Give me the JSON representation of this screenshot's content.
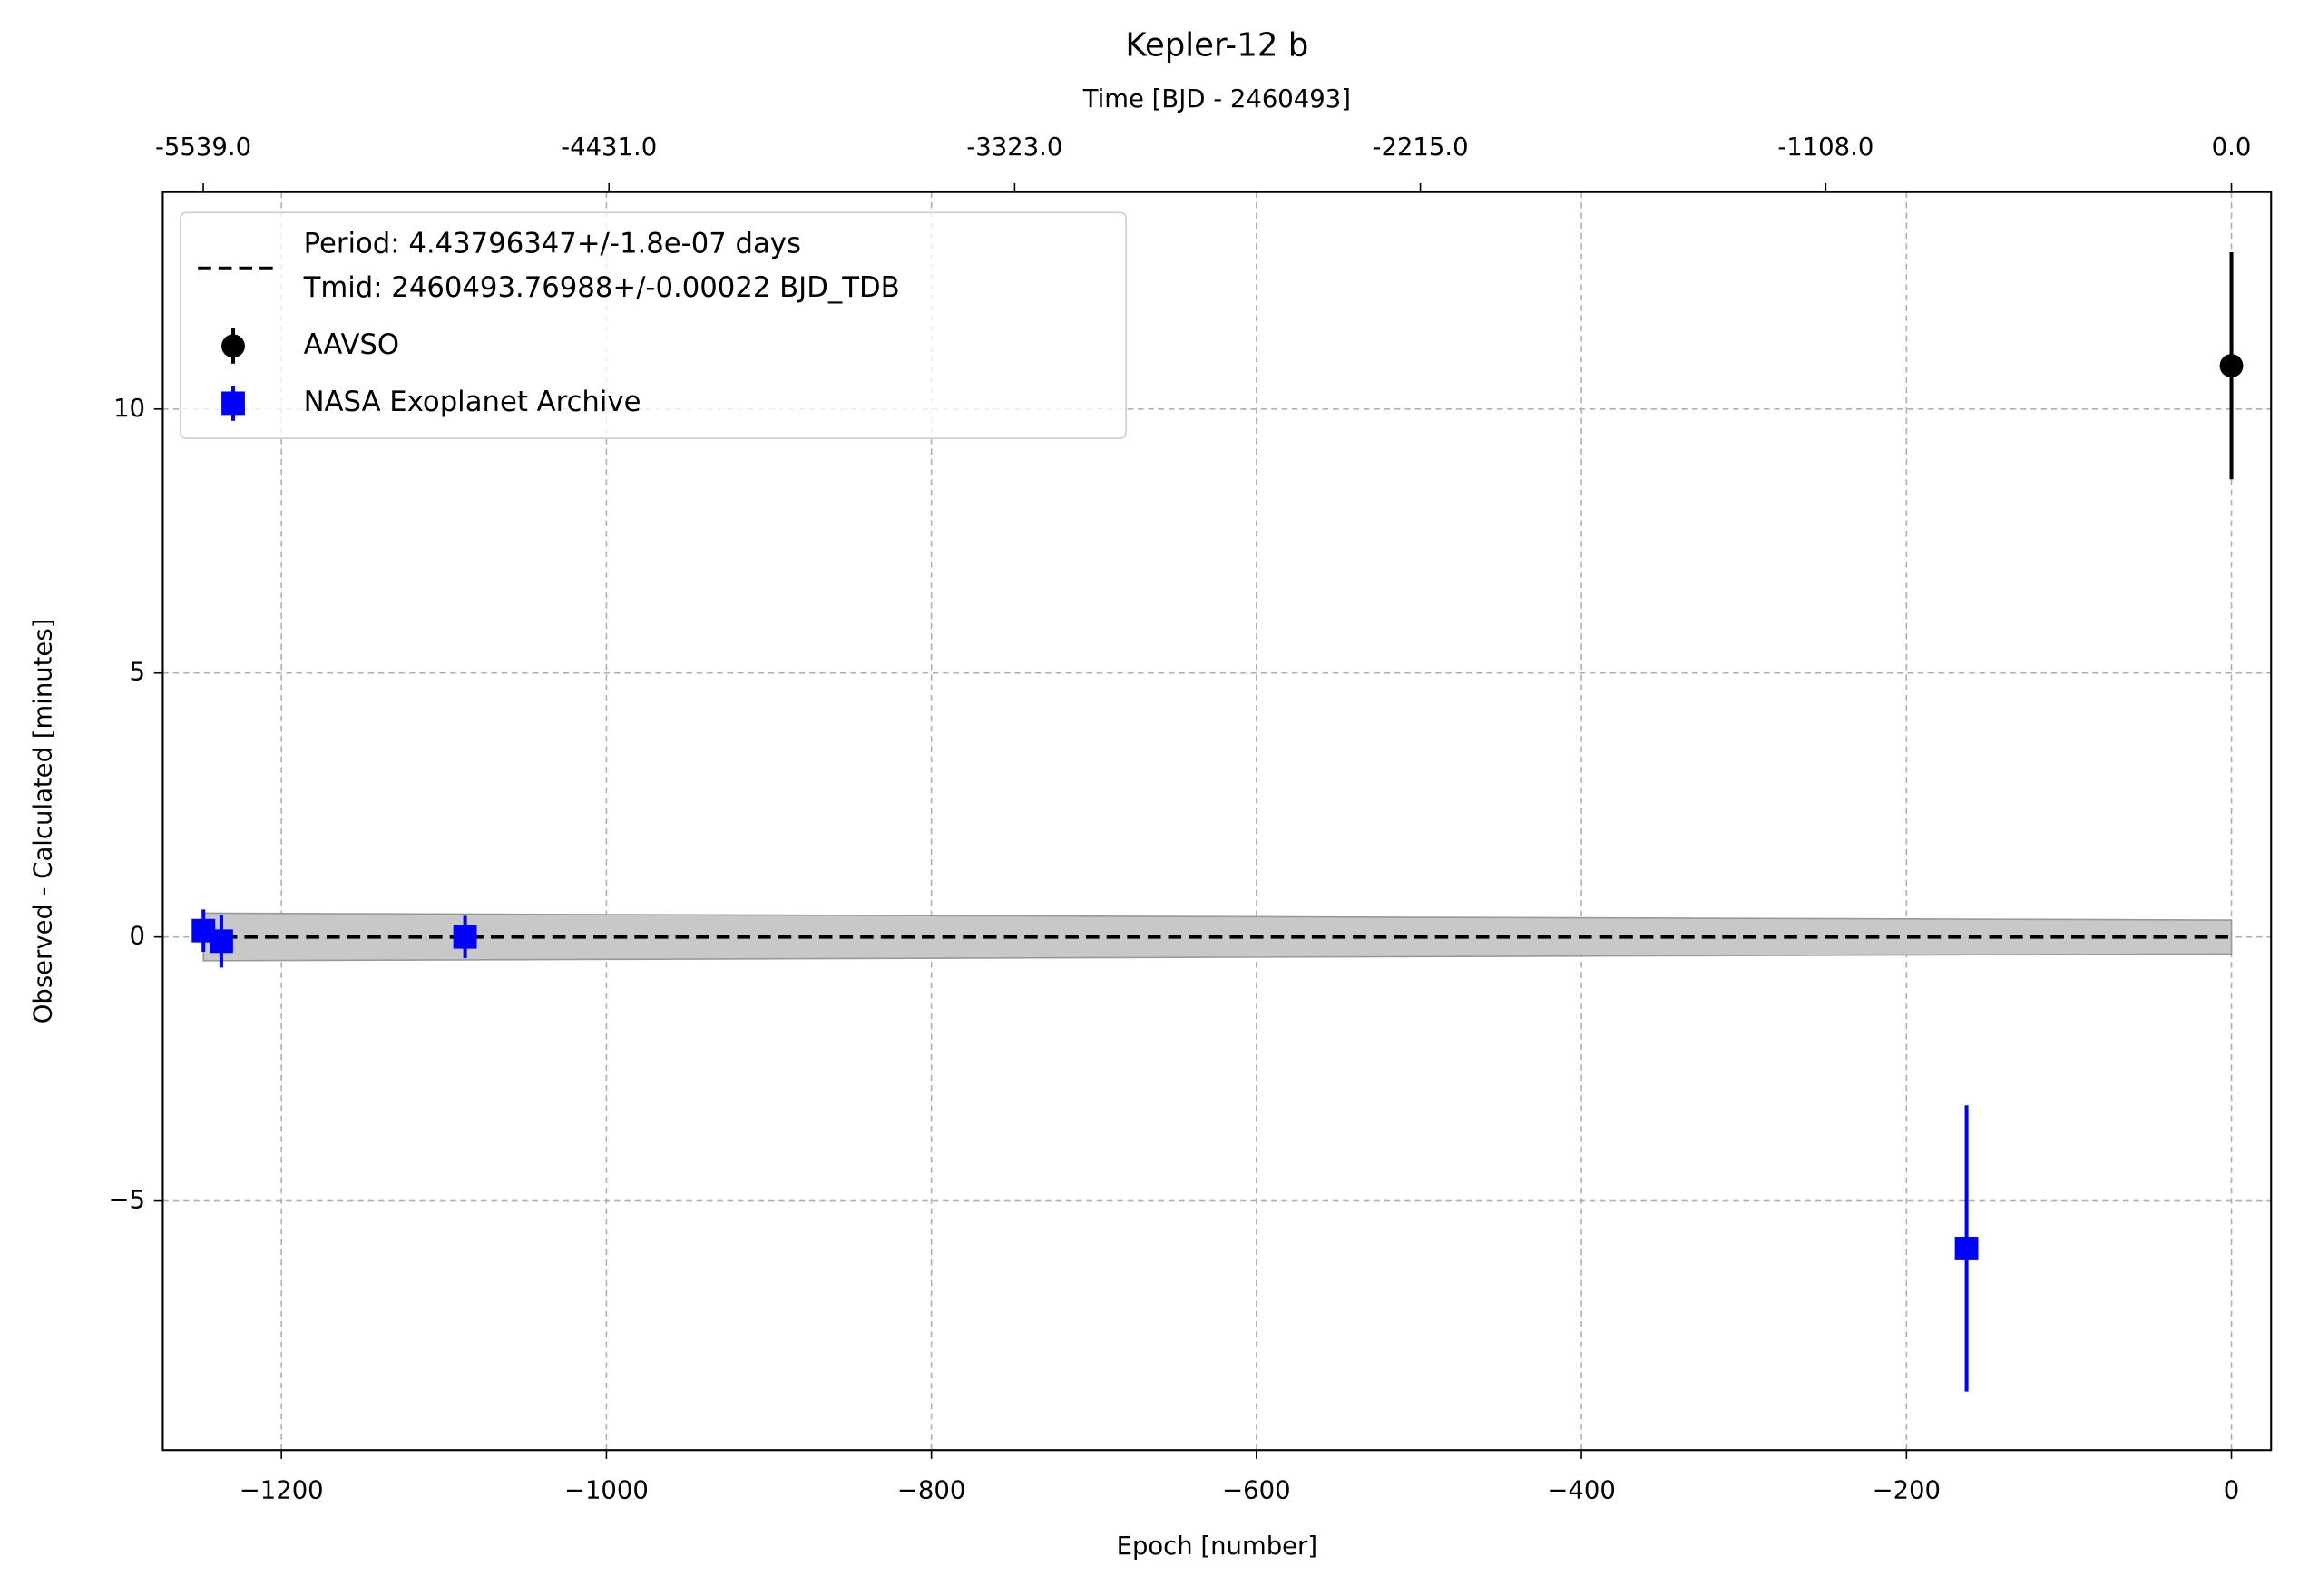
{
  "chart_data": {
    "type": "scatter",
    "title": "Kepler-12 b",
    "xlabel": "Epoch [number]",
    "ylabel": "Observed - Calculated [minutes]",
    "x2label": "Time [BJD - 2460493]",
    "xlim": [
      -1273,
      24.4
    ],
    "ylim": [
      -9.72,
      14.11
    ],
    "x2lim": [
      -5649.5,
      108.3
    ],
    "xticks": [
      {
        "value": -1200,
        "label": "−1200"
      },
      {
        "value": -1000,
        "label": "−1000"
      },
      {
        "value": -800,
        "label": "−800"
      },
      {
        "value": -600,
        "label": "−600"
      },
      {
        "value": -400,
        "label": "−400"
      },
      {
        "value": -200,
        "label": "−200"
      },
      0
    ],
    "yticks": [
      {
        "value": -5,
        "label": "−5"
      },
      0,
      5,
      10
    ],
    "x2ticks": [
      {
        "value": -5539,
        "label": "-5539.0"
      },
      {
        "value": -4431,
        "label": "-4431.0"
      },
      {
        "value": -3323,
        "label": "-3323.0"
      },
      {
        "value": -2215,
        "label": "-2215.0"
      },
      {
        "value": -1108,
        "label": "-1108.0"
      },
      {
        "value": 0,
        "label": "0.0"
      }
    ],
    "grid": true,
    "legend": "upper left",
    "fit": {
      "label": [
        "Period: 4.43796347+/-1.8e-07 days",
        "Tmid: 2460493.76988+/-0.00022 BJD_TDB"
      ],
      "color": "#000000",
      "band_color": "#c8c8c8",
      "x": [
        -1248,
        0
      ],
      "values": [
        0,
        0
      ],
      "upper": [
        0.45,
        0.32
      ],
      "lower": [
        -0.45,
        -0.32
      ]
    },
    "series": [
      {
        "name": "AAVSO",
        "color": "#000000",
        "marker": "circle",
        "x": [
          0
        ],
        "values": [
          10.82
        ],
        "errors": [
          2.15
        ]
      },
      {
        "name": "NASA Exoplanet Archive",
        "color": "#0000ff",
        "marker": "square",
        "x": [
          -1248,
          -1237,
          -1087,
          -163
        ],
        "values": [
          0.12,
          -0.08,
          0.0,
          -5.9
        ],
        "errors": [
          0.4,
          0.5,
          0.4,
          2.71
        ]
      }
    ]
  }
}
